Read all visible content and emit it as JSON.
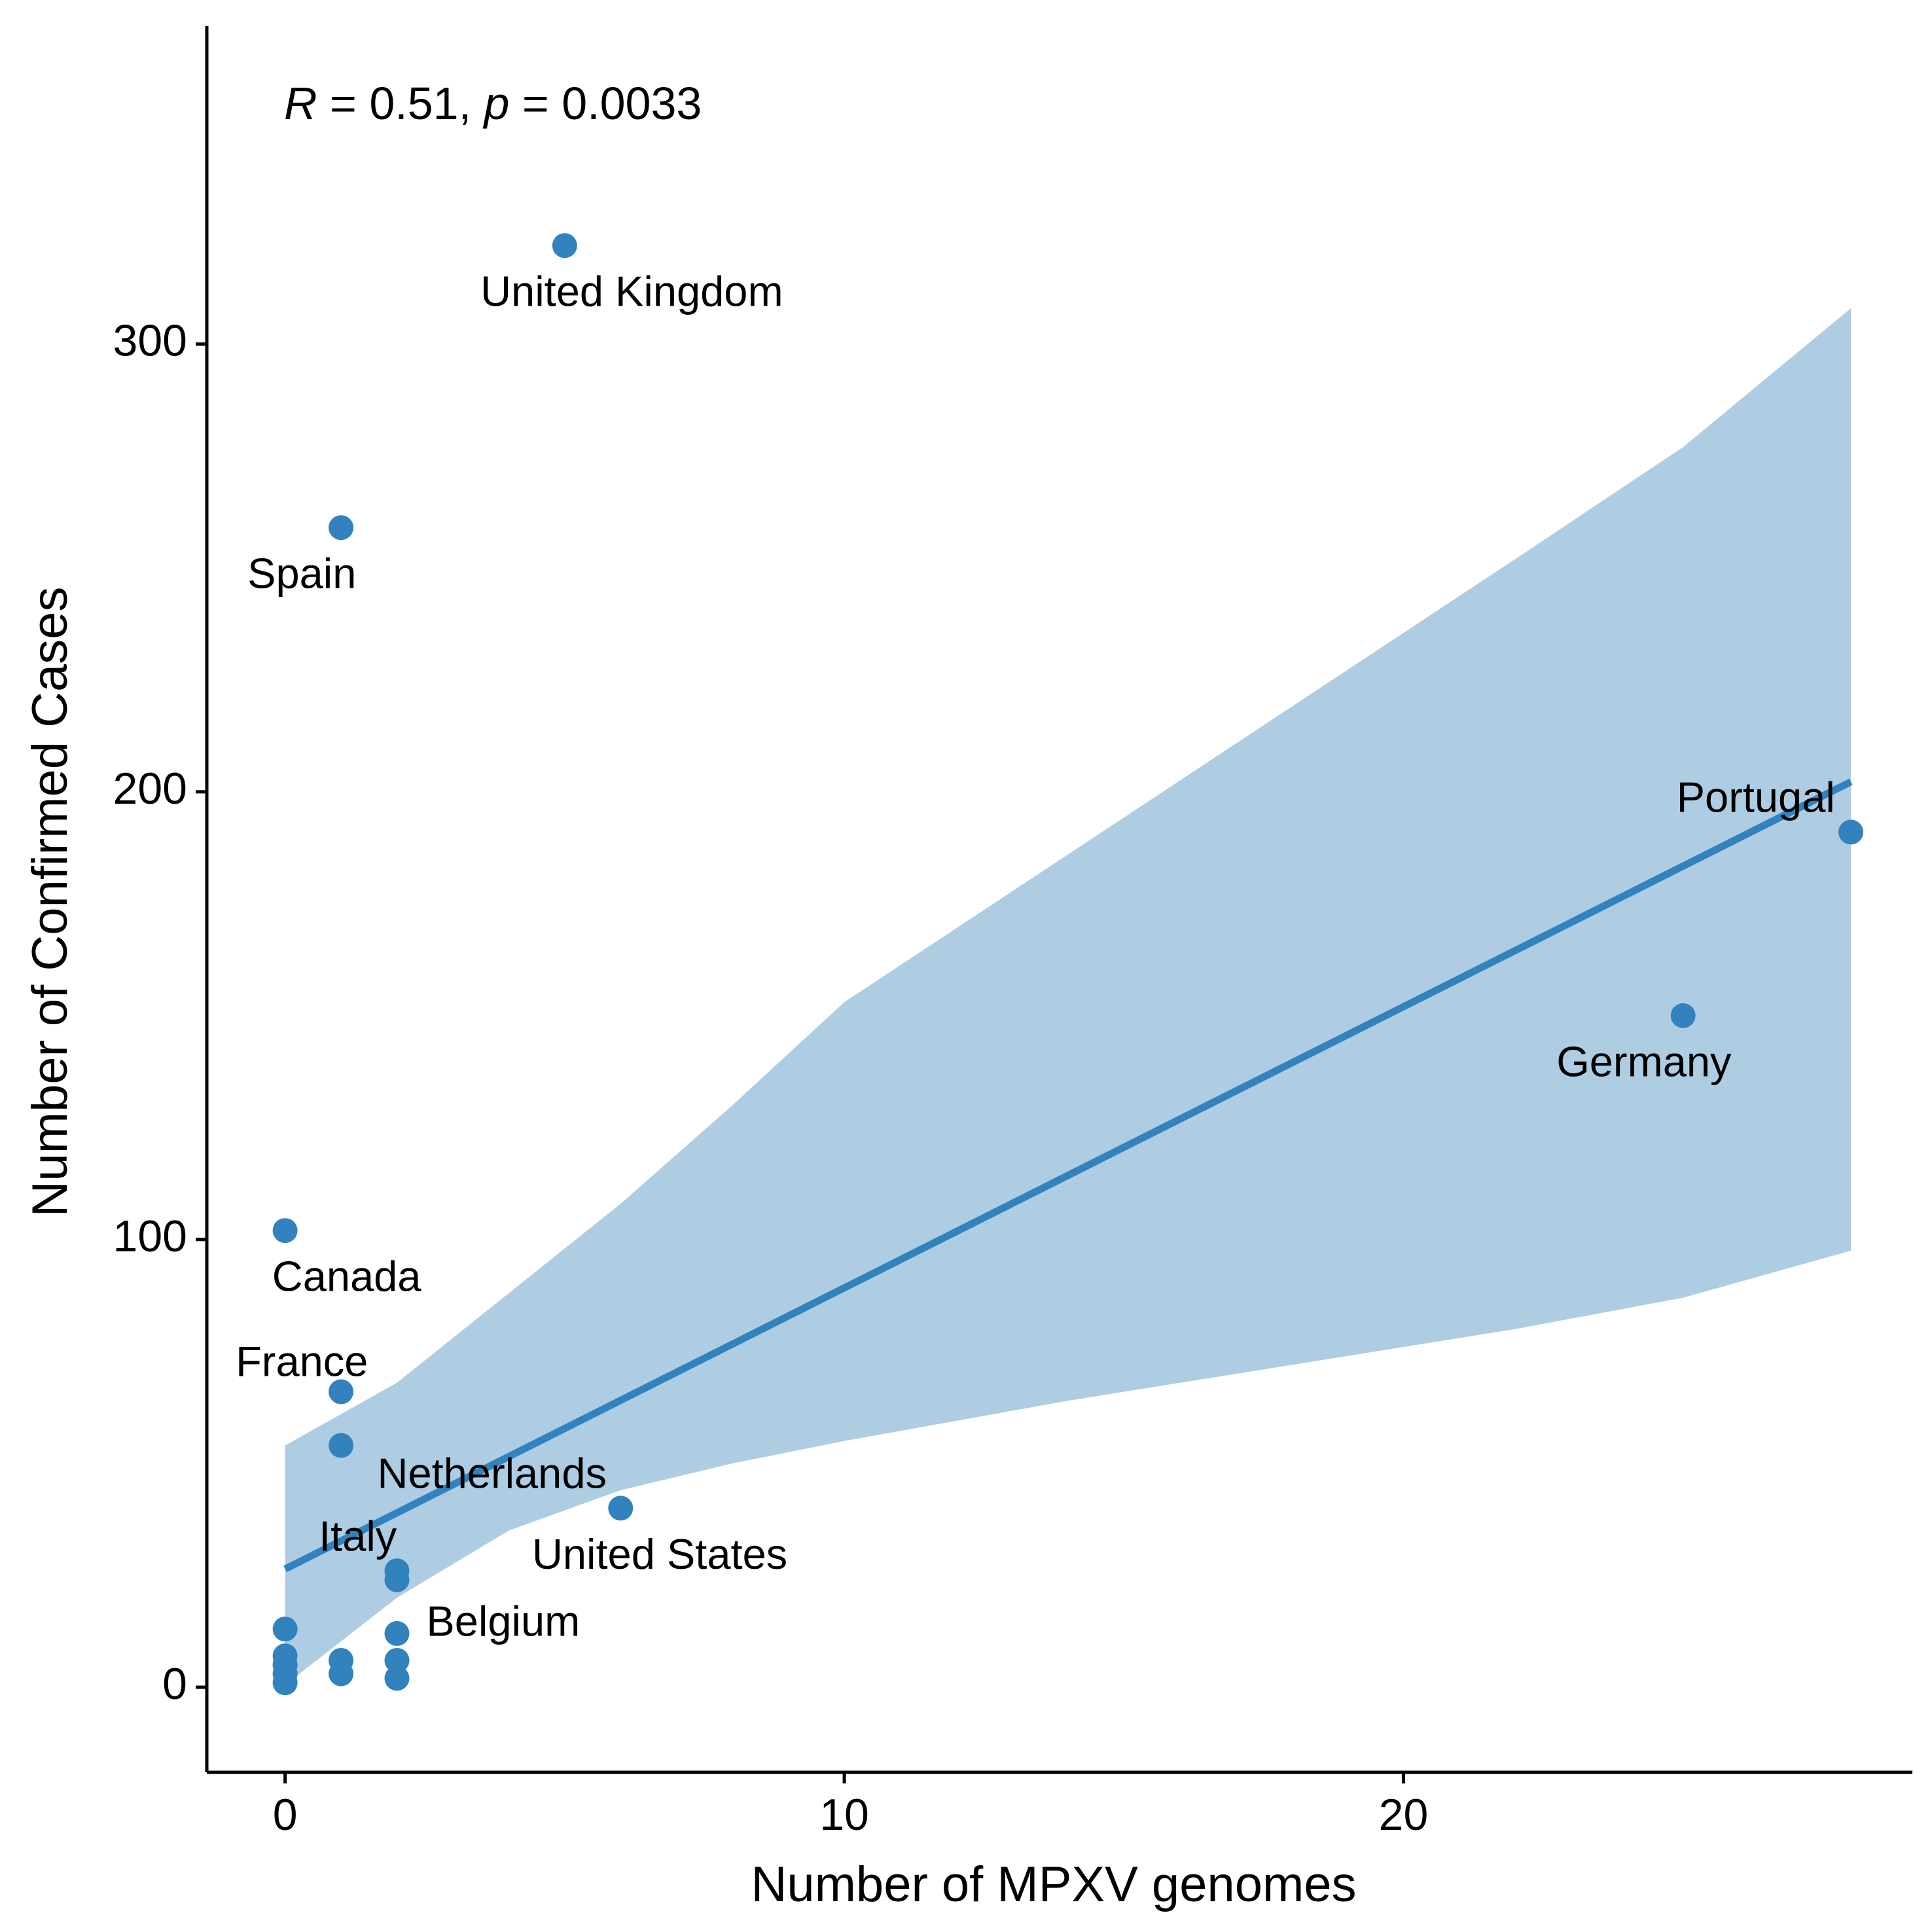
{
  "chart_data": {
    "type": "scatter",
    "xlabel": "Number of MPXV genomes",
    "ylabel": "Number of Confirmed Cases",
    "xlim": [
      -1.4,
      29.1
    ],
    "ylim": [
      -19,
      371
    ],
    "x_ticks": [
      0,
      10,
      20
    ],
    "y_ticks": [
      0,
      100,
      200,
      300
    ],
    "grid": false,
    "annotation": {
      "r_symbol": "R",
      "r_text": " = 0.51, ",
      "p_symbol": "p",
      "p_text": " = 0.0033"
    },
    "colors": {
      "points": "#3182bd",
      "line": "#3182bd",
      "band": "#aecde3",
      "axis": "#000000"
    },
    "regression": {
      "intercept": 26.4,
      "slope": 6.28,
      "x_range": [
        0,
        28
      ],
      "ci_band": [
        {
          "x": 0,
          "lower": 0.5,
          "upper": 54.0
        },
        {
          "x": 2,
          "lower": 20.0,
          "upper": 68.0
        },
        {
          "x": 4,
          "lower": 35.0,
          "upper": 88.0
        },
        {
          "x": 6,
          "lower": 44.0,
          "upper": 108.0
        },
        {
          "x": 8,
          "lower": 50.0,
          "upper": 130.0
        },
        {
          "x": 10,
          "lower": 55.0,
          "upper": 153.0
        },
        {
          "x": 14,
          "lower": 64.0,
          "upper": 186.0
        },
        {
          "x": 18,
          "lower": 72.0,
          "upper": 219.0
        },
        {
          "x": 22,
          "lower": 80.0,
          "upper": 252.0
        },
        {
          "x": 25,
          "lower": 87.0,
          "upper": 277.0
        },
        {
          "x": 28,
          "lower": 97.5,
          "upper": 308.0
        }
      ]
    },
    "points": [
      {
        "x": 5,
        "y": 322,
        "label": "United Kingdom",
        "label_x": 6.2,
        "label_y": 311
      },
      {
        "x": 1,
        "y": 259,
        "label": "Spain",
        "label_x": 0.3,
        "label_y": 248
      },
      {
        "x": 28,
        "y": 191,
        "label": "Portugal",
        "label_x": 26.3,
        "label_y": 198
      },
      {
        "x": 25,
        "y": 150,
        "label": "Germany",
        "label_x": 24.3,
        "label_y": 139
      },
      {
        "x": 0,
        "y": 102,
        "label": "Canada",
        "label_x": 1.1,
        "label_y": 91
      },
      {
        "x": 1,
        "y": 66,
        "label": "France",
        "label_x": 0.3,
        "label_y": 72
      },
      {
        "x": 1,
        "y": 54,
        "label": "Netherlands",
        "label_x": 3.7,
        "label_y": 47
      },
      {
        "x": 6,
        "y": 40,
        "label": "United States",
        "label_x": 6.7,
        "label_y": 29
      },
      {
        "x": 2,
        "y": 26,
        "label": "Italy",
        "label_x": 1.3,
        "label_y": 33
      },
      {
        "x": 2,
        "y": 24,
        "label": "",
        "label_x": null,
        "label_y": null
      },
      {
        "x": 2,
        "y": 12,
        "label": "Belgium",
        "label_x": 3.9,
        "label_y": 14
      },
      {
        "x": 0,
        "y": 13,
        "label": "",
        "label_x": null,
        "label_y": null
      },
      {
        "x": 0,
        "y": 7,
        "label": "",
        "label_x": null,
        "label_y": null
      },
      {
        "x": 0,
        "y": 5,
        "label": "",
        "label_x": null,
        "label_y": null
      },
      {
        "x": 0,
        "y": 3,
        "label": "",
        "label_x": null,
        "label_y": null
      },
      {
        "x": 0,
        "y": 1,
        "label": "",
        "label_x": null,
        "label_y": null
      },
      {
        "x": 1,
        "y": 6,
        "label": "",
        "label_x": null,
        "label_y": null
      },
      {
        "x": 1,
        "y": 3,
        "label": "",
        "label_x": null,
        "label_y": null
      },
      {
        "x": 2,
        "y": 6,
        "label": "",
        "label_x": null,
        "label_y": null
      },
      {
        "x": 2,
        "y": 2,
        "label": "",
        "label_x": null,
        "label_y": null
      }
    ]
  }
}
